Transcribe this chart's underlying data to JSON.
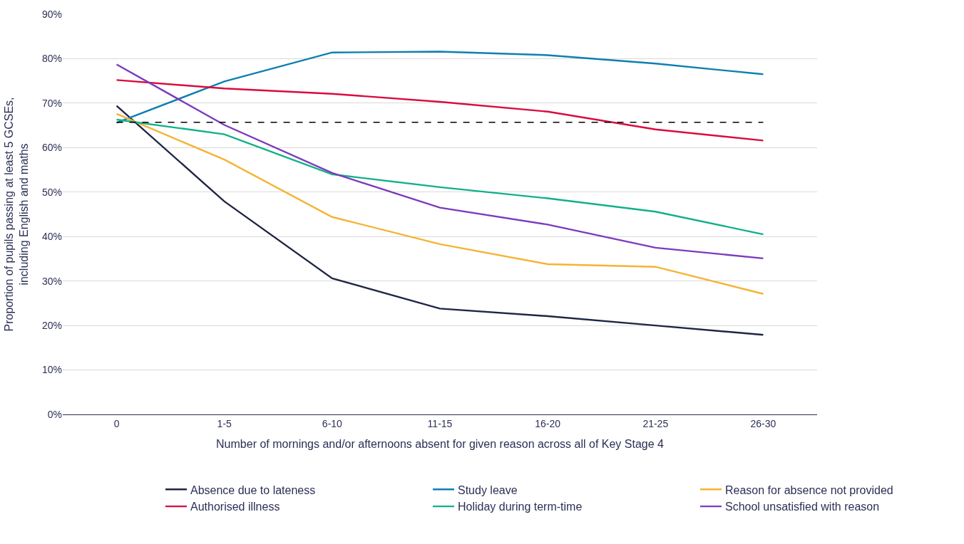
{
  "chart_data": {
    "type": "line",
    "xlabel": "Number of mornings and/or afternoons absent for given reason across all of Key Stage 4",
    "ylabel": "Proportion of pupils passing at least 5 GCSEs,\nincluding English and maths",
    "categories": [
      "0",
      "1-5",
      "6-10",
      "11-15",
      "16-20",
      "21-25",
      "26-30"
    ],
    "series": [
      {
        "name": "Absence due to lateness",
        "color": "#1f2544",
        "values": [
          69.4,
          47.9,
          30.6,
          23.8,
          22.1,
          20.0,
          17.9
        ]
      },
      {
        "name": "Study leave",
        "color": "#0e7fb0",
        "values": [
          65.6,
          74.9,
          81.4,
          81.6,
          80.8,
          78.9,
          76.5
        ]
      },
      {
        "name": "Reason for absence not provided",
        "color": "#f5b335",
        "values": [
          67.6,
          57.3,
          44.4,
          38.3,
          33.8,
          33.2,
          27.1
        ]
      },
      {
        "name": "Authorised illness",
        "color": "#d90b3e",
        "values": [
          75.2,
          73.3,
          72.1,
          70.3,
          68.1,
          64.1,
          61.6
        ]
      },
      {
        "name": "Holiday during term-time",
        "color": "#11b08a",
        "values": [
          66.3,
          63.0,
          54.0,
          51.1,
          48.6,
          45.6,
          40.5
        ]
      },
      {
        "name": "School unsatisfied with reason",
        "color": "#7b3bbd",
        "values": [
          78.7,
          65.1,
          54.3,
          46.5,
          42.7,
          37.5,
          35.1
        ]
      }
    ],
    "ylim": [
      0,
      90
    ],
    "yticks": [
      {
        "value": 0,
        "label": "0%"
      },
      {
        "value": 10,
        "label": "10%"
      },
      {
        "value": 20,
        "label": "20%"
      },
      {
        "value": 30,
        "label": "30%"
      },
      {
        "value": 40,
        "label": "40%"
      },
      {
        "value": 50,
        "label": "50%"
      },
      {
        "value": 60,
        "label": "60%"
      },
      {
        "value": 70,
        "label": "70%"
      },
      {
        "value": 80,
        "label": "80%"
      },
      {
        "value": 90,
        "label": "90%"
      }
    ],
    "ref_lines": [
      {
        "axis": "y",
        "value": 65.7,
        "color": "#000000",
        "line_style": "dashed"
      }
    ],
    "grid": "y",
    "legend": "bottom",
    "marker": "none",
    "line_style": "solid"
  }
}
